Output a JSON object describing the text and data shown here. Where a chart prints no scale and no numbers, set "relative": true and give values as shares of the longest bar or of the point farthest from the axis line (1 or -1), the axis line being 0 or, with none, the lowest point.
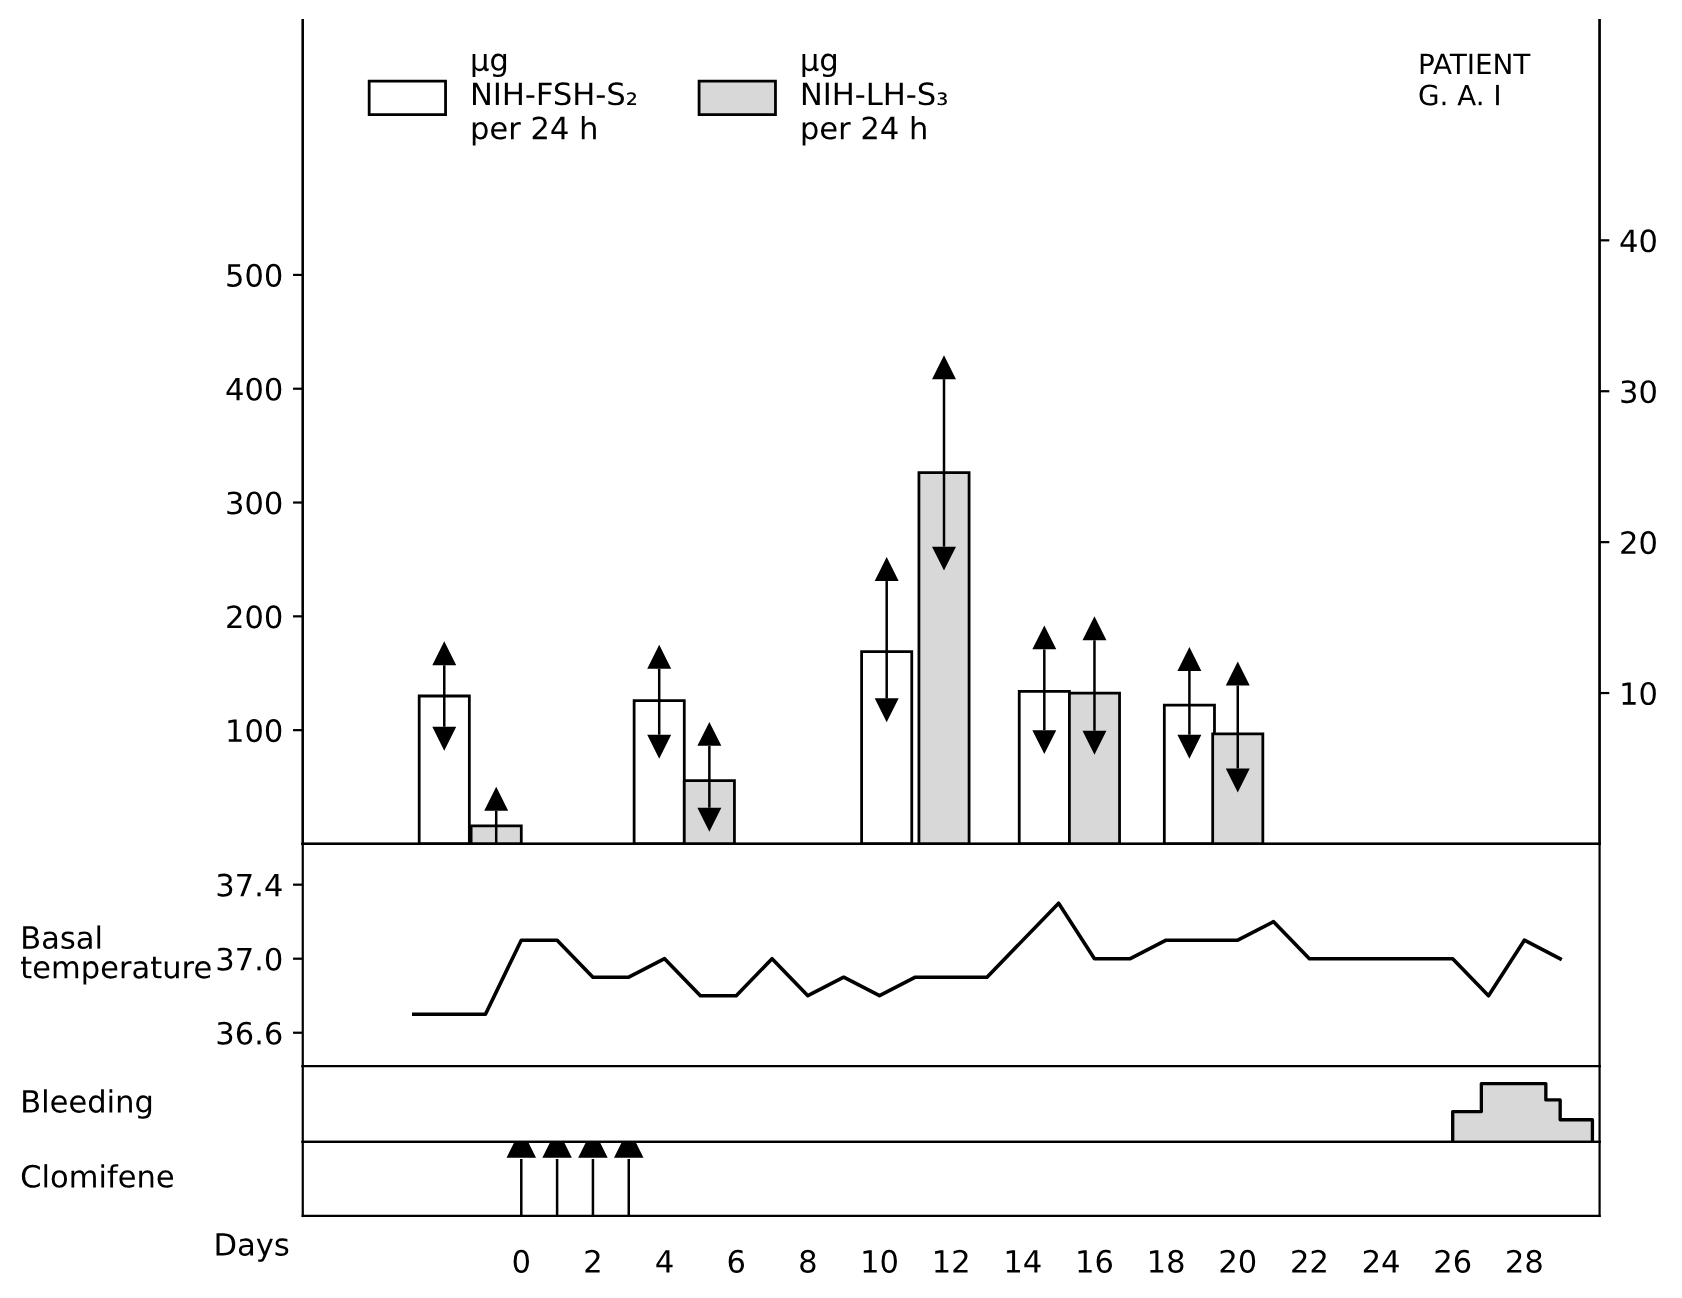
{
  "chart_data": [
    {
      "type": "bar",
      "xlim": [
        -6.1,
        30.1
      ],
      "ylim": [
        0,
        724
      ],
      "yticks": [
        100,
        200,
        300,
        400,
        500
      ],
      "y2lim": [
        0,
        54.6
      ],
      "y2ticks": [
        10,
        20,
        30,
        40
      ],
      "tick_labels": "y",
      "legend": "top left",
      "annotations": [
        "PATIENT\nG. A. I"
      ],
      "series": [
        {
          "name": "μg\nNIH-FSH-S₂\nper 24 h",
          "color": "#ffffff",
          "x": [
            -2.15,
            3.85,
            10.2,
            14.6,
            18.65
          ],
          "values": [
            130,
            126,
            169,
            134,
            122
          ],
          "errors": [
            [
              103,
              157
            ],
            [
              96,
              154
            ],
            [
              128,
              231
            ],
            [
              100,
              171
            ],
            [
              96,
              152
            ]
          ]
        },
        {
          "name": "μg\nNIH-LH-S₃\nper 24 h",
          "color": "#d8d8d8",
          "axis": "y2",
          "x": [
            -0.7,
            5.25,
            11.8,
            16.0,
            20.0
          ],
          "values": [
            1.2,
            4.2,
            24.6,
            10.0,
            7.3
          ],
          "errors": [
            [
              0,
              2.2
            ],
            [
              2.4,
              6.5
            ],
            [
              19.7,
              30.8
            ],
            [
              7.5,
              13.5
            ],
            [
              5,
              10.5
            ]
          ]
        }
      ]
    },
    {
      "type": "line",
      "ylabel": "Basal\ntemperature",
      "xlim": [
        -6.1,
        30.1
      ],
      "ylim": [
        36.42,
        37.62
      ],
      "yticks": [
        37.4,
        {
          "value": 37.0,
          "label": "37.0"
        },
        36.6
      ],
      "tick_labels": "y",
      "marker": "none",
      "line_style": "solid",
      "series": [
        {
          "color": "#000000",
          "x": [
            -3,
            -1,
            0,
            1,
            2,
            3,
            4,
            5,
            6,
            7,
            8,
            9,
            10,
            11,
            13,
            15,
            16,
            17,
            18,
            20,
            21,
            22,
            26,
            27,
            28,
            29
          ],
          "values": [
            36.7,
            36.7,
            37.1,
            37.1,
            36.9,
            36.9,
            37.0,
            36.8,
            36.8,
            37.0,
            36.8,
            36.9,
            36.8,
            36.9,
            36.9,
            37.3,
            37.0,
            37.0,
            37.1,
            37.1,
            37.2,
            37.0,
            37.0,
            36.8,
            37.1,
            37.0
          ]
        }
      ]
    },
    {
      "type": "area",
      "ylabel": "Bleeding",
      "relative": true,
      "xlim": [
        -6.1,
        30.1
      ],
      "tick_labels": false,
      "series": [
        {
          "color": "#d8d8d8",
          "x": [
            26,
            26,
            26.8,
            26.8,
            28.6,
            28.6,
            29.0,
            29.0,
            29.9,
            29.9
          ],
          "values": [
            0,
            0.52,
            0.52,
            1,
            1,
            0.72,
            0.72,
            0.38,
            0.38,
            0
          ]
        }
      ]
    },
    {
      "type": "bar",
      "ylabel": "Clomifene",
      "xlabel": "Days",
      "relative": true,
      "xlim": [
        -6.1,
        30.1
      ],
      "xticks": [
        0,
        2,
        4,
        6,
        8,
        10,
        12,
        14,
        16,
        18,
        20,
        22,
        24,
        26,
        28
      ],
      "tick_labels": "x",
      "series": [
        {
          "color": "#000000",
          "x": [
            0,
            1,
            2,
            3
          ],
          "values": [
            1,
            1,
            1,
            1
          ]
        }
      ]
    }
  ]
}
